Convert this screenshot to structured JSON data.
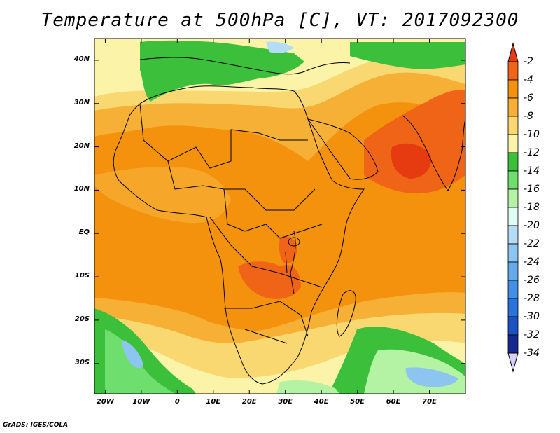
{
  "title": "Temperature at 500hPa [C], VT: 2017092300",
  "footer": "GrADS: IGES/COLA",
  "map": {
    "projection": "lat-lon",
    "lon_range": [
      -23,
      80
    ],
    "lat_range": [
      -37,
      45
    ],
    "lat_labels": [
      {
        "text": "40N",
        "lat": 40
      },
      {
        "text": "30N",
        "lat": 30
      },
      {
        "text": "20N",
        "lat": 20
      },
      {
        "text": "10N",
        "lat": 10
      },
      {
        "text": "EQ",
        "lat": 0
      },
      {
        "text": "10S",
        "lat": -10
      },
      {
        "text": "20S",
        "lat": -20
      },
      {
        "text": "30S",
        "lat": -30
      }
    ],
    "lon_labels": [
      {
        "text": "20W",
        "lon": -20
      },
      {
        "text": "10W",
        "lon": -10
      },
      {
        "text": "0",
        "lon": 0
      },
      {
        "text": "10E",
        "lon": 10
      },
      {
        "text": "20E",
        "lon": 20
      },
      {
        "text": "30E",
        "lon": 30
      },
      {
        "text": "40E",
        "lon": 40
      },
      {
        "text": "50E",
        "lon": 50
      },
      {
        "text": "60E",
        "lon": 60
      },
      {
        "text": "70E",
        "lon": 70
      }
    ]
  },
  "colorbar": {
    "labels": [
      "-2",
      "-4",
      "-6",
      "-8",
      "-10",
      "-12",
      "-14",
      "-16",
      "-18",
      "-20",
      "-22",
      "-24",
      "-26",
      "-28",
      "-30",
      "-32",
      "-34"
    ],
    "colors": [
      "#e63a10",
      "#f06418",
      "#f5920d",
      "#f6b036",
      "#f9d872",
      "#fbf3a8",
      "#3cc03c",
      "#6ede6e",
      "#b4f2a4",
      "#e0fcf4",
      "#b4dcf6",
      "#8cc6f0",
      "#64aaea",
      "#4290e6",
      "#2a72dc",
      "#1a52c6",
      "#162890",
      "#d8d0fa"
    ]
  }
}
